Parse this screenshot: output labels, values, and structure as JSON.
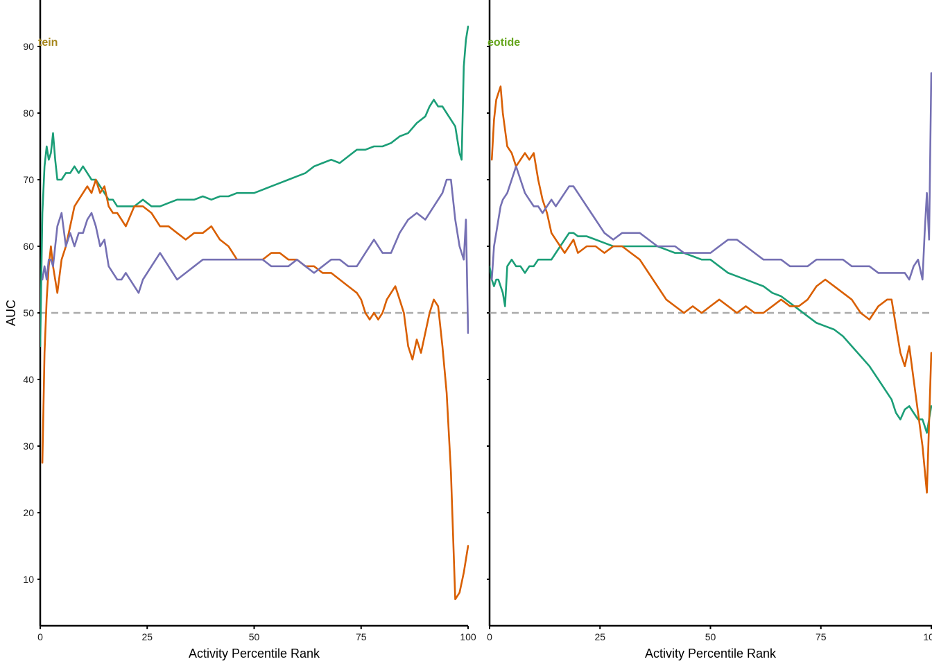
{
  "chart_data": {
    "type": "line",
    "ylabel": "AUC",
    "xlabel": "Activity Percentile Rank",
    "ylim": [
      3,
      97
    ],
    "y_ticks": [
      "10",
      "20",
      "30",
      "40",
      "50",
      "60",
      "70",
      "80",
      "90"
    ],
    "x_ticks": [
      "0",
      "25",
      "50",
      "75",
      "100"
    ],
    "reference_line": {
      "y": 50,
      "style": "dashed",
      "color": "#aaaaaa"
    },
    "colors": {
      "green": "#1b9e77",
      "orange": "#d95f02",
      "purple": "#7570b3"
    },
    "grid": false,
    "panels": [
      {
        "label": "tein",
        "label_color": "#a6861c",
        "xlim": [
          0,
          100
        ],
        "series": [
          {
            "color": "#1b9e77",
            "x": [
              0,
              0.5,
              1,
              1.5,
              2,
              2.5,
              3,
              3.5,
              4,
              5,
              6,
              7,
              8,
              9,
              10,
              11,
              12,
              13,
              14,
              15,
              16,
              17,
              18,
              19,
              20,
              22,
              24,
              26,
              28,
              30,
              32,
              34,
              36,
              38,
              40,
              42,
              44,
              46,
              48,
              50,
              52,
              54,
              56,
              58,
              60,
              62,
              64,
              66,
              68,
              70,
              72,
              74,
              76,
              78,
              80,
              82,
              84,
              86,
              88,
              90,
              91,
              92,
              93,
              94,
              95,
              96,
              97,
              98,
              98.5,
              99,
              99.5,
              100
            ],
            "y": [
              45,
              65,
              72,
              75,
              73,
              74,
              77,
              73,
              70,
              70,
              71,
              71,
              72,
              71,
              72,
              71,
              70,
              70,
              69,
              68,
              67,
              67,
              66,
              66,
              66,
              66,
              67,
              66,
              66,
              66.5,
              67,
              67,
              67,
              67.5,
              67,
              67.5,
              67.5,
              68,
              68,
              68,
              68.5,
              69,
              69.5,
              70,
              70.5,
              71,
              72,
              72.5,
              73,
              72.5,
              73.5,
              74.5,
              74.5,
              75,
              75,
              75.5,
              76.5,
              77,
              78.5,
              79.5,
              81,
              82,
              81,
              81,
              80,
              79,
              78,
              74,
              73,
              87,
              91,
              93
            ]
          },
          {
            "color": "#d95f02",
            "x": [
              0.5,
              1,
              1.5,
              2,
              2.5,
              3,
              4,
              5,
              6,
              7,
              8,
              9,
              10,
              11,
              12,
              13,
              14,
              15,
              16,
              17,
              18,
              20,
              22,
              24,
              26,
              28,
              30,
              32,
              34,
              36,
              38,
              40,
              42,
              44,
              46,
              48,
              50,
              52,
              54,
              56,
              58,
              60,
              62,
              64,
              66,
              68,
              70,
              72,
              74,
              75,
              76,
              77,
              78,
              79,
              80,
              81,
              82,
              83,
              84,
              85,
              86,
              87,
              88,
              89,
              90,
              91,
              92,
              93,
              94,
              95,
              96,
              97,
              98,
              99,
              100
            ],
            "y": [
              27.5,
              44,
              52,
              57,
              60,
              57,
              53,
              58,
              60,
              63,
              66,
              67,
              68,
              69,
              68,
              70,
              68,
              69,
              66,
              65,
              65,
              63,
              66,
              66,
              65,
              63,
              63,
              62,
              61,
              62,
              62,
              63,
              61,
              60,
              58,
              58,
              58,
              58,
              59,
              59,
              58,
              58,
              57,
              57,
              56,
              56,
              55,
              54,
              53,
              52,
              50,
              49,
              50,
              49,
              50,
              52,
              53,
              54,
              52,
              50,
              45,
              43,
              46,
              44,
              47,
              50,
              52,
              51,
              45,
              38,
              26,
              7,
              8,
              11,
              15
            ]
          },
          {
            "color": "#7570b3",
            "x": [
              0.5,
              1,
              1.5,
              2,
              2.5,
              3,
              4,
              5,
              6,
              7,
              8,
              9,
              10,
              11,
              12,
              13,
              14,
              15,
              16,
              17,
              18,
              19,
              20,
              22,
              23,
              24,
              26,
              28,
              30,
              32,
              34,
              36,
              38,
              40,
              42,
              44,
              46,
              48,
              50,
              52,
              54,
              56,
              58,
              60,
              62,
              64,
              66,
              68,
              70,
              72,
              74,
              76,
              78,
              80,
              82,
              84,
              86,
              88,
              90,
              92,
              94,
              95,
              96,
              97,
              98,
              99,
              99.5,
              100
            ],
            "y": [
              55,
              57,
              55,
              58,
              58,
              57,
              63,
              65,
              60,
              62,
              60,
              62,
              62,
              64,
              65,
              63,
              60,
              61,
              57,
              56,
              55,
              55,
              56,
              54,
              53,
              55,
              57,
              59,
              57,
              55,
              56,
              57,
              58,
              58,
              58,
              58,
              58,
              58,
              58,
              58,
              57,
              57,
              57,
              58,
              57,
              56,
              57,
              58,
              58,
              57,
              57,
              59,
              61,
              59,
              59,
              62,
              64,
              65,
              64,
              66,
              68,
              70,
              70,
              64,
              60,
              58,
              64,
              47
            ]
          }
        ]
      },
      {
        "label": "eotide",
        "label_color": "#66a61e",
        "xlim": [
          0,
          100
        ],
        "series": [
          {
            "color": "#1b9e77",
            "x": [
              0,
              0.5,
              1,
              1.5,
              2,
              2.5,
              3,
              3.5,
              4,
              5,
              6,
              7,
              8,
              9,
              10,
              11,
              12,
              13,
              14,
              15,
              16,
              17,
              18,
              19,
              20,
              22,
              24,
              26,
              28,
              30,
              32,
              34,
              36,
              38,
              40,
              42,
              44,
              46,
              48,
              50,
              52,
              54,
              56,
              58,
              60,
              62,
              64,
              66,
              68,
              70,
              72,
              74,
              76,
              78,
              80,
              82,
              84,
              86,
              88,
              90,
              91,
              92,
              93,
              94,
              95,
              96,
              97,
              98,
              99,
              100
            ],
            "y": [
              57,
              55,
              54,
              55,
              55,
              54,
              53,
              51,
              57,
              58,
              57,
              57,
              56,
              57,
              57,
              58,
              58,
              58,
              58,
              59,
              60,
              61,
              62,
              62,
              61.5,
              61.5,
              61,
              60.5,
              60,
              60,
              60,
              60,
              60,
              60,
              59.5,
              59,
              59,
              58.5,
              58,
              58,
              57,
              56,
              55.5,
              55,
              54.5,
              54,
              53,
              52.5,
              51.5,
              50.5,
              49.5,
              48.5,
              48,
              47.5,
              46.5,
              45,
              43.5,
              42,
              40,
              38,
              37,
              35,
              34,
              35.5,
              36,
              35,
              34,
              34,
              32,
              36
            ]
          },
          {
            "color": "#d95f02",
            "x": [
              0.5,
              1,
              1.5,
              2,
              2.5,
              3,
              4,
              5,
              6,
              7,
              8,
              9,
              10,
              11,
              12,
              13,
              14,
              15,
              16,
              17,
              18,
              19,
              20,
              22,
              24,
              26,
              28,
              30,
              32,
              34,
              36,
              38,
              40,
              42,
              44,
              46,
              48,
              50,
              52,
              54,
              56,
              58,
              60,
              62,
              64,
              66,
              68,
              70,
              72,
              74,
              76,
              78,
              80,
              82,
              84,
              86,
              88,
              90,
              91,
              92,
              93,
              94,
              95,
              96,
              97,
              98,
              99,
              100
            ],
            "y": [
              73,
              79,
              82,
              83,
              84,
              80,
              75,
              74,
              72,
              73,
              74,
              73,
              74,
              70,
              67,
              65,
              62,
              61,
              60,
              59,
              60,
              61,
              59,
              60,
              60,
              59,
              60,
              60,
              59,
              58,
              56,
              54,
              52,
              51,
              50,
              51,
              50,
              51,
              52,
              51,
              50,
              51,
              50,
              50,
              51,
              52,
              51,
              51,
              52,
              54,
              55,
              54,
              53,
              52,
              50,
              49,
              51,
              52,
              52,
              48,
              44,
              42,
              45,
              40,
              35,
              30,
              23,
              44
            ]
          },
          {
            "color": "#7570b3",
            "x": [
              0.5,
              1,
              1.5,
              2,
              2.5,
              3,
              4,
              5,
              6,
              7,
              8,
              9,
              10,
              11,
              12,
              13,
              14,
              15,
              16,
              17,
              18,
              19,
              20,
              22,
              24,
              26,
              28,
              30,
              32,
              34,
              36,
              38,
              40,
              42,
              44,
              46,
              48,
              50,
              52,
              54,
              56,
              58,
              60,
              62,
              64,
              66,
              68,
              70,
              72,
              74,
              76,
              78,
              80,
              82,
              84,
              86,
              88,
              90,
              92,
              94,
              95,
              96,
              97,
              98,
              98.5,
              99,
              99.5,
              100
            ],
            "y": [
              55,
              60,
              62,
              64,
              66,
              67,
              68,
              70,
              72,
              70,
              68,
              67,
              66,
              66,
              65,
              66,
              67,
              66,
              67,
              68,
              69,
              69,
              68,
              66,
              64,
              62,
              61,
              62,
              62,
              62,
              61,
              60,
              60,
              60,
              59,
              59,
              59,
              59,
              60,
              61,
              61,
              60,
              59,
              58,
              58,
              58,
              57,
              57,
              57,
              58,
              58,
              58,
              58,
              57,
              57,
              57,
              56,
              56,
              56,
              56,
              55,
              57,
              58,
              55,
              62,
              68,
              61,
              86
            ]
          }
        ]
      }
    ]
  }
}
